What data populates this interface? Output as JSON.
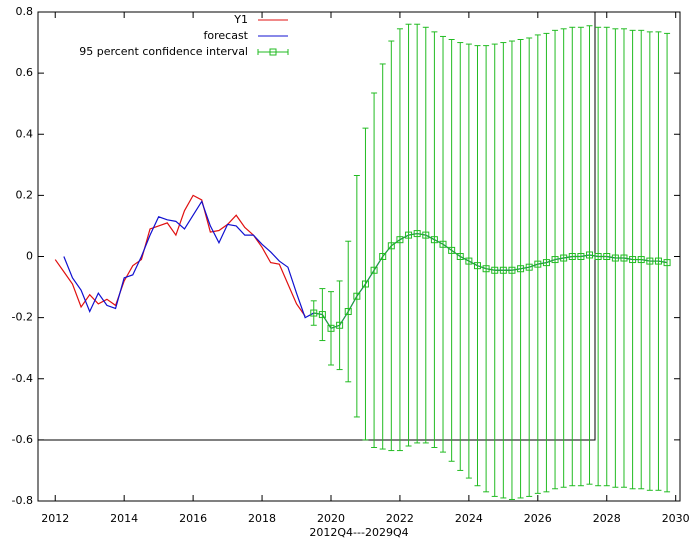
{
  "chart_data": {
    "type": "line",
    "xlabel": "2012Q4---2029Q4",
    "xlim": [
      2011.5,
      2030.125
    ],
    "ylim": [
      -0.8,
      0.8
    ],
    "xticks": [
      2012,
      2014,
      2016,
      2018,
      2020,
      2022,
      2024,
      2026,
      2028,
      2030
    ],
    "yticks": [
      -0.8,
      -0.6,
      -0.4,
      -0.2,
      0,
      0.2,
      0.4,
      0.6,
      0.8
    ],
    "legend": "top-right",
    "series": [
      {
        "name": "Y1",
        "color": "#e01010",
        "x": [
          2012,
          2012.25,
          2012.5,
          2012.75,
          2013,
          2013.25,
          2013.5,
          2013.75,
          2014,
          2014.25,
          2014.5,
          2014.75,
          2015,
          2015.25,
          2015.5,
          2015.75,
          2016,
          2016.25,
          2016.5,
          2016.75,
          2017,
          2017.25,
          2017.5,
          2017.75,
          2018,
          2018.25,
          2018.5,
          2018.75,
          2019,
          2019.25
        ],
        "values": [
          -0.01,
          -0.05,
          -0.09,
          -0.165,
          -0.125,
          -0.155,
          -0.14,
          -0.16,
          -0.08,
          -0.03,
          -0.01,
          0.09,
          0.1,
          0.11,
          0.07,
          0.15,
          0.2,
          0.185,
          0.08,
          0.085,
          0.105,
          0.135,
          0.095,
          0.07,
          0.03,
          -0.02,
          -0.025,
          -0.09,
          -0.155,
          -0.195
        ]
      },
      {
        "name": "forecast",
        "color": "#1010d0",
        "x": [
          2012.25,
          2012.5,
          2012.75,
          2013,
          2013.25,
          2013.5,
          2013.75,
          2014,
          2014.25,
          2014.5,
          2014.75,
          2015,
          2015.25,
          2015.5,
          2015.75,
          2016,
          2016.25,
          2016.5,
          2016.75,
          2017,
          2017.25,
          2017.5,
          2017.75,
          2018,
          2018.25,
          2018.5,
          2018.75,
          2019,
          2019.25,
          2019.5,
          2019.75,
          2020,
          2020.25,
          2020.5,
          2020.75,
          2021,
          2021.25,
          2021.5,
          2021.75,
          2022,
          2022.25,
          2022.5,
          2022.75,
          2023,
          2023.25,
          2023.5,
          2023.75,
          2024,
          2024.25,
          2024.5,
          2024.75,
          2025,
          2025.25,
          2025.5,
          2025.75,
          2026,
          2026.25,
          2026.5,
          2026.75,
          2027,
          2027.25,
          2027.5,
          2027.75,
          2028,
          2028.25,
          2028.5,
          2028.75,
          2029,
          2029.25,
          2029.5,
          2029.75
        ],
        "values": [
          0,
          -0.07,
          -0.11,
          -0.18,
          -0.12,
          -0.16,
          -0.17,
          -0.07,
          -0.06,
          0,
          0.07,
          0.13,
          0.12,
          0.115,
          0.09,
          0.135,
          0.18,
          0.1,
          0.045,
          0.105,
          0.1,
          0.07,
          0.07,
          0.04,
          0.015,
          -0.015,
          -0.035,
          -0.12,
          -0.2,
          -0.185,
          -0.19,
          -0.235,
          -0.225,
          -0.18,
          -0.13,
          -0.09,
          -0.045,
          0,
          0.035,
          0.055,
          0.07,
          0.075,
          0.07,
          0.055,
          0.04,
          0.02,
          0,
          -0.015,
          -0.03,
          -0.04,
          -0.045,
          -0.045,
          -0.045,
          -0.04,
          -0.035,
          -0.025,
          -0.02,
          -0.01,
          -0.005,
          0,
          0,
          0.005,
          0,
          0,
          -0.005,
          -0.005,
          -0.01,
          -0.01,
          -0.015,
          -0.015,
          -0.02
        ]
      },
      {
        "name": "95 percent confidence interval",
        "color": "#22bb22",
        "errorbars": true,
        "x": [
          2019.5,
          2019.75,
          2020,
          2020.25,
          2020.5,
          2020.75,
          2021,
          2021.25,
          2021.5,
          2021.75,
          2022,
          2022.25,
          2022.5,
          2022.75,
          2023,
          2023.25,
          2023.5,
          2023.75,
          2024,
          2024.25,
          2024.5,
          2024.75,
          2025,
          2025.25,
          2025.5,
          2025.75,
          2026,
          2026.25,
          2026.5,
          2026.75,
          2027,
          2027.25,
          2027.5,
          2027.75,
          2028,
          2028.25,
          2028.5,
          2028.75,
          2029,
          2029.25,
          2029.5,
          2029.75
        ],
        "values": [
          -0.185,
          -0.19,
          -0.235,
          -0.225,
          -0.18,
          -0.13,
          -0.09,
          -0.045,
          0,
          0.035,
          0.055,
          0.07,
          0.075,
          0.07,
          0.055,
          0.04,
          0.02,
          0,
          -0.015,
          -0.03,
          -0.04,
          -0.045,
          -0.045,
          -0.045,
          -0.04,
          -0.035,
          -0.025,
          -0.02,
          -0.01,
          -0.005,
          0,
          0,
          0.005,
          0,
          0,
          -0.005,
          -0.005,
          -0.01,
          -0.01,
          -0.015,
          -0.015,
          -0.02
        ],
        "errors": [
          0.04,
          0.085,
          0.12,
          0.145,
          0.23,
          0.395,
          0.51,
          0.58,
          0.63,
          0.67,
          0.69,
          0.69,
          0.685,
          0.68,
          0.68,
          0.68,
          0.69,
          0.7,
          0.71,
          0.72,
          0.73,
          0.74,
          0.745,
          0.75,
          0.75,
          0.75,
          0.75,
          0.75,
          0.75,
          0.75,
          0.75,
          0.75,
          0.75,
          0.75,
          0.75,
          0.75,
          0.75,
          0.75,
          0.75,
          0.75,
          0.75,
          0.75
        ]
      }
    ]
  }
}
